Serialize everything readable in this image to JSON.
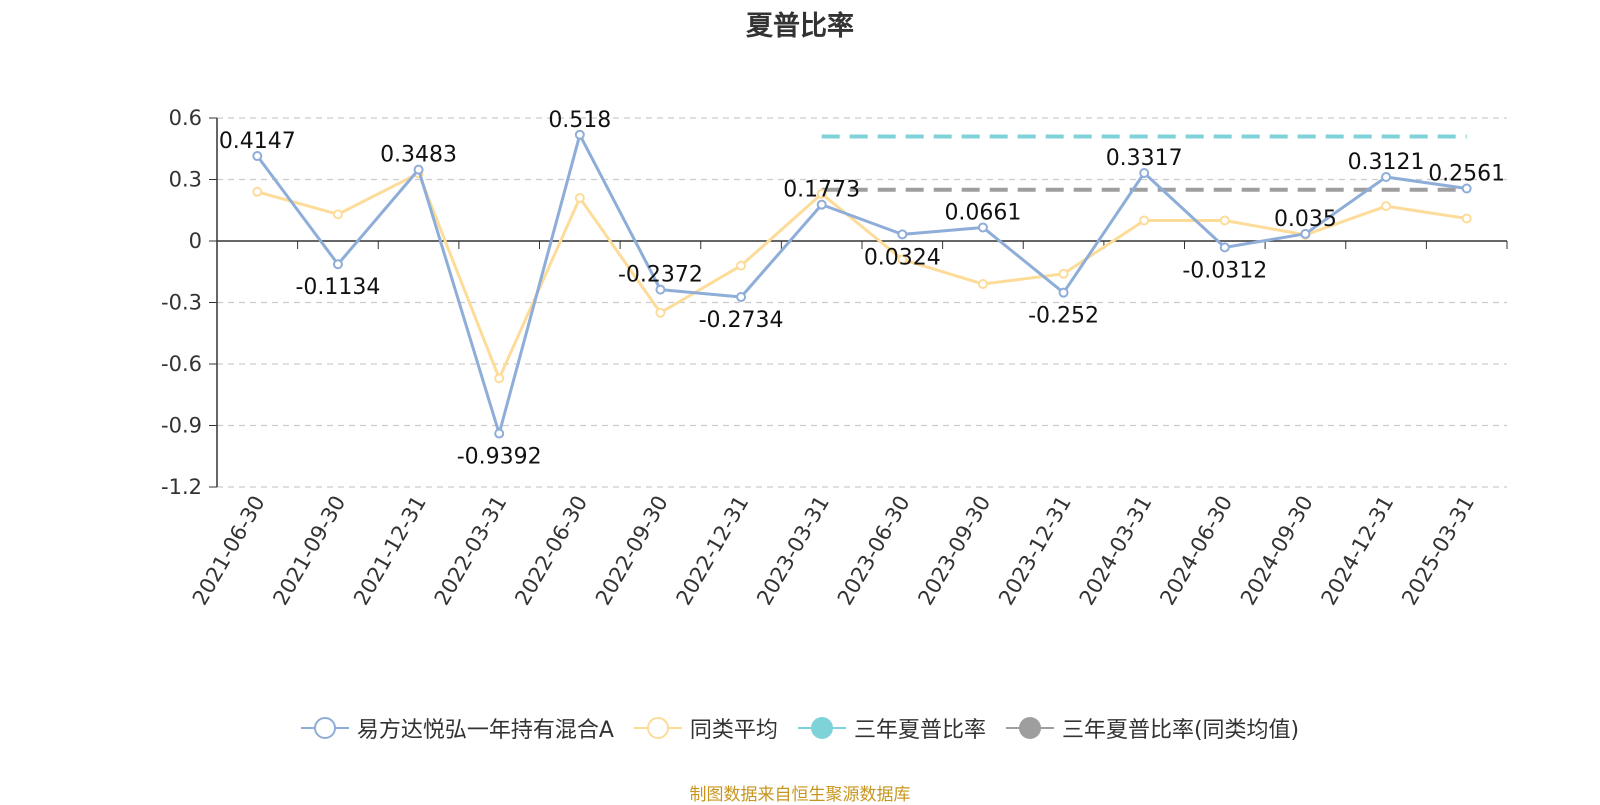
{
  "chart_data": {
    "type": "line",
    "title": "夏普比率",
    "categories": [
      "2021-06-30",
      "2021-09-30",
      "2021-12-31",
      "2022-03-31",
      "2022-06-30",
      "2022-09-30",
      "2022-12-31",
      "2023-03-31",
      "2023-06-30",
      "2023-09-30",
      "2023-12-31",
      "2024-03-31",
      "2024-06-30",
      "2024-09-30",
      "2024-12-31",
      "2025-03-31"
    ],
    "ylim": [
      -1.2,
      0.6
    ],
    "yticks": [
      "0.6",
      "0.3",
      "0",
      "-0.3",
      "-0.6",
      "-0.9",
      "-1.2"
    ],
    "grid": true,
    "legend_position": "bottom",
    "series": [
      {
        "name": "易方达悦弘一年持有混合A",
        "color": "#8eadd8",
        "values": [
          0.4147,
          -0.1134,
          0.3483,
          -0.9392,
          0.518,
          -0.2372,
          -0.2734,
          0.1773,
          0.0324,
          0.0661,
          -0.252,
          0.3317,
          -0.0312,
          0.035,
          0.3121,
          0.2561
        ],
        "labels": [
          "0.4147",
          "-0.1134",
          "0.3483",
          "-0.9392",
          "0.518",
          "-0.2372",
          "-0.2734",
          "0.1773",
          "0.0324",
          "0.0661",
          "-0.252",
          "0.3317",
          "-0.0312",
          "0.035",
          "0.3121",
          "0.2561"
        ]
      },
      {
        "name": "同类平均",
        "color": "#fddc9a",
        "values": [
          0.24,
          0.13,
          0.33,
          -0.67,
          0.21,
          -0.35,
          -0.12,
          0.23,
          -0.09,
          -0.21,
          -0.16,
          0.1,
          0.1,
          0.03,
          0.17,
          0.11
        ]
      }
    ],
    "reference_lines": [
      {
        "name": "三年夏普比率",
        "color": "#7fd3d8",
        "value": 0.51,
        "from_category": "2023-03-31"
      },
      {
        "name": "三年夏普比率(同类均值)",
        "color": "#9e9e9e",
        "value": 0.25,
        "from_category": "2023-03-31"
      }
    ]
  },
  "legend": [
    {
      "label": "易方达悦弘一年持有混合A",
      "color": "#8eadd8",
      "style": "hollow"
    },
    {
      "label": "同类平均",
      "color": "#fddc9a",
      "style": "hollow"
    },
    {
      "label": "三年夏普比率",
      "color": "#7fd3d8",
      "style": "filled"
    },
    {
      "label": "三年夏普比率(同类均值)",
      "color": "#9e9e9e",
      "style": "filled"
    }
  ],
  "footer": "制图数据来自恒生聚源数据库"
}
